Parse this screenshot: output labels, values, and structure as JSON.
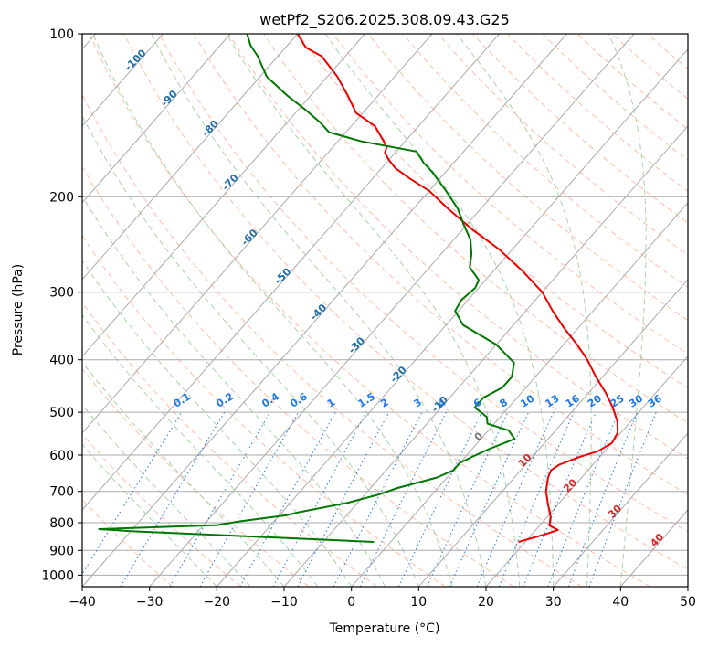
{
  "chart_data": {
    "type": "line",
    "title": "wetPf2_S206.2025.308.09.43.G25",
    "xlabel": "Temperature (°C)",
    "ylabel": "Pressure (hPa)",
    "xlim": [
      -40,
      50
    ],
    "ylim": [
      1050,
      100
    ],
    "y_scale": "log",
    "grid": true,
    "x_ticks": [
      -40,
      -30,
      -20,
      -10,
      0,
      10,
      20,
      30,
      40,
      50
    ],
    "x_tick_labels": [
      "−40",
      "−30",
      "−20",
      "−10",
      "0",
      "10",
      "20",
      "30",
      "40",
      "50"
    ],
    "y_ticks": [
      100,
      200,
      300,
      400,
      500,
      600,
      700,
      800,
      900,
      1000
    ],
    "y_tick_labels": [
      "100",
      "200",
      "300",
      "400",
      "500",
      "600",
      "700",
      "800",
      "900",
      "1000"
    ],
    "colors": {
      "temperature": "#ee0000",
      "dewpoint": "#007700",
      "isotherm_grid": "#aaaaaa",
      "dry_adiabat": "#ffb199",
      "moist_adiabat": "#99cc99",
      "mixing_ratio": "#1f77e8",
      "isotherm_label": "#1f6fa8",
      "warm_label": "#d62728",
      "zero_label": "#777777",
      "sat_curve": "#d2b48c"
    },
    "series": [
      {
        "key": "temperature",
        "points": [
          [
            19.0,
            868
          ],
          [
            22.0,
            840
          ],
          [
            23.3,
            825
          ],
          [
            21.5,
            810
          ],
          [
            20.5,
            780
          ],
          [
            18.5,
            740
          ],
          [
            16.5,
            700
          ],
          [
            15.0,
            660
          ],
          [
            14.5,
            640
          ],
          [
            15.0,
            625
          ],
          [
            17.0,
            605
          ],
          [
            19.0,
            590
          ],
          [
            20.0,
            570
          ],
          [
            19.5,
            545
          ],
          [
            18.0,
            520
          ],
          [
            15.5,
            490
          ],
          [
            12.5,
            460
          ],
          [
            9.0,
            430
          ],
          [
            5.5,
            400
          ],
          [
            2.0,
            375
          ],
          [
            -2.0,
            350
          ],
          [
            -6.0,
            325
          ],
          [
            -10.0,
            300
          ],
          [
            -15.5,
            275
          ],
          [
            -22.0,
            250
          ],
          [
            -28.5,
            230
          ],
          [
            -35.0,
            210
          ],
          [
            -40.0,
            195
          ],
          [
            -44.5,
            185
          ],
          [
            -48.0,
            177
          ],
          [
            -50.0,
            171
          ],
          [
            -51.5,
            166
          ],
          [
            -52.0,
            162
          ],
          [
            -53.5,
            157
          ],
          [
            -56.5,
            148
          ],
          [
            -61.0,
            140
          ],
          [
            -64.5,
            130
          ],
          [
            -68.5,
            120
          ],
          [
            -73.5,
            110
          ],
          [
            -77.0,
            106
          ],
          [
            -80.0,
            100
          ]
        ]
      },
      {
        "key": "dewpoint",
        "points": [
          [
            -2.5,
            868
          ],
          [
            -40.0,
            829
          ],
          [
            -45.0,
            822
          ],
          [
            -28.0,
            808
          ],
          [
            -25.0,
            795
          ],
          [
            -19.0,
            775
          ],
          [
            -17.5,
            765
          ],
          [
            -11.5,
            735
          ],
          [
            -8.0,
            710
          ],
          [
            -6.0,
            690
          ],
          [
            -3.0,
            670
          ],
          [
            -1.5,
            660
          ],
          [
            0.0,
            640
          ],
          [
            0.0,
            620
          ],
          [
            1.0,
            605
          ],
          [
            2.5,
            585
          ],
          [
            5.0,
            560
          ],
          [
            3.0,
            540
          ],
          [
            -1.0,
            525
          ],
          [
            -2.0,
            510
          ],
          [
            -5.0,
            490
          ],
          [
            -5.0,
            470
          ],
          [
            -3.5,
            450
          ],
          [
            -3.5,
            430
          ],
          [
            -5.0,
            405
          ],
          [
            -10.0,
            375
          ],
          [
            -17.5,
            345
          ],
          [
            -20.5,
            325
          ],
          [
            -21.0,
            310
          ],
          [
            -20.5,
            295
          ],
          [
            -21.0,
            285
          ],
          [
            -24.0,
            270
          ],
          [
            -25.5,
            255
          ],
          [
            -27.5,
            240
          ],
          [
            -30.5,
            225
          ],
          [
            -33.5,
            210
          ],
          [
            -37.5,
            195
          ],
          [
            -42.0,
            180
          ],
          [
            -44.5,
            173
          ],
          [
            -47.0,
            165
          ],
          [
            -56.5,
            158
          ],
          [
            -62.5,
            152
          ],
          [
            -65.0,
            146
          ],
          [
            -69.0,
            138
          ],
          [
            -73.5,
            130
          ],
          [
            -79.0,
            120
          ],
          [
            -83.0,
            110
          ],
          [
            -85.5,
            105
          ],
          [
            -87.5,
            100
          ]
        ]
      }
    ],
    "mixing_ratio_labels": [
      "0.1",
      "0.2",
      "0.4",
      "0.6",
      "1",
      "1.5",
      "2",
      "3",
      "4",
      "6",
      "8",
      "10",
      "13",
      "16",
      "20",
      "25",
      "30",
      "36"
    ],
    "isotherm_labels": [
      "-100",
      "-90",
      "-80",
      "-70",
      "-60",
      "-50",
      "-40",
      "-30",
      "-20",
      "-10",
      "0",
      "10",
      "20",
      "30",
      "40"
    ]
  }
}
